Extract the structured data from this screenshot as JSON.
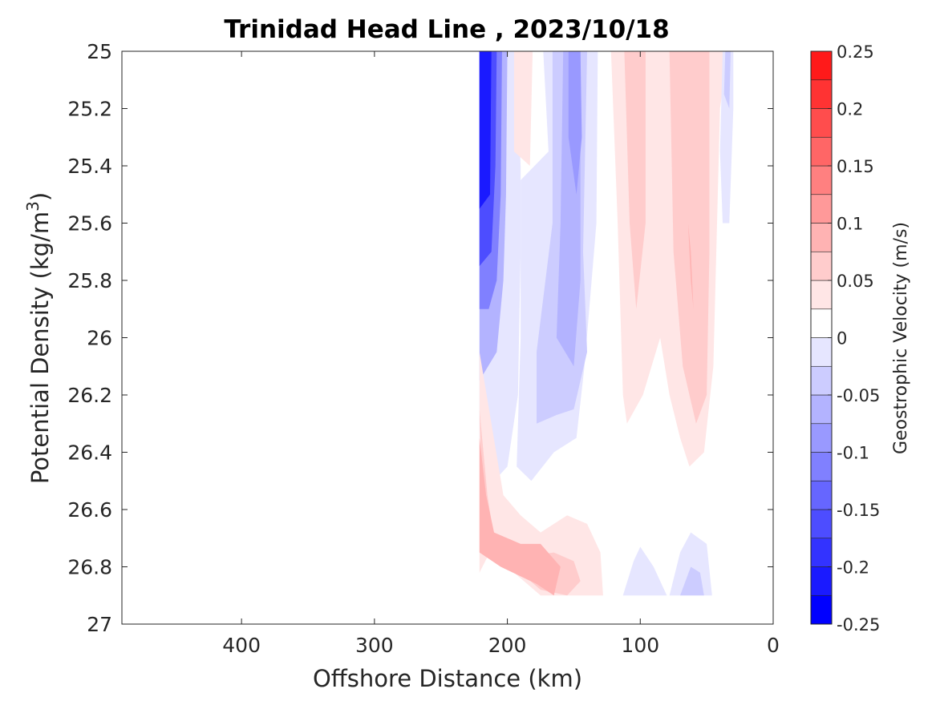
{
  "chart_data": {
    "type": "contour",
    "title": "Trinidad Head Line , 2023/10/18",
    "xlabel": "Offshore Distance (km)",
    "ylabel": "Potential Density (kg/m",
    "ylabel_sup": "3",
    "ylabel_close": ")",
    "xlim": [
      490,
      0
    ],
    "x_reversed": true,
    "ylim": [
      25,
      27
    ],
    "y_reversed": true,
    "xticks": [
      400,
      300,
      200,
      100,
      0
    ],
    "xtick_labels": [
      "400",
      "300",
      "200",
      "100",
      "0"
    ],
    "yticks": [
      25,
      25.2,
      25.4,
      25.6,
      25.8,
      26,
      26.2,
      26.4,
      26.6,
      26.8,
      27
    ],
    "ytick_labels": [
      "25",
      "25.2",
      "25.4",
      "25.6",
      "25.8",
      "26",
      "26.2",
      "26.4",
      "26.6",
      "26.8",
      "27"
    ],
    "grid": false,
    "colorbar": {
      "label": "Geostrophic Velocity (m/s)",
      "limits": [
        -0.25,
        0.25
      ],
      "levels": [
        -0.25,
        -0.225,
        -0.2,
        -0.175,
        -0.15,
        -0.125,
        -0.1,
        -0.075,
        -0.05,
        -0.025,
        0,
        0.025,
        0.05,
        0.075,
        0.1,
        0.125,
        0.15,
        0.175,
        0.2,
        0.225,
        0.25
      ],
      "colors": [
        "#0000ff",
        "#1a1aff",
        "#3333ff",
        "#4d4dff",
        "#6666ff",
        "#8080ff",
        "#9999ff",
        "#b3b3ff",
        "#ccccff",
        "#e6e6ff",
        "#ffffff",
        "#ffe6e6",
        "#ffcccc",
        "#ffb3b3",
        "#ff9999",
        "#ff8080",
        "#ff6666",
        "#ff4d4d",
        "#ff3333",
        "#ff1a1a"
      ],
      "tick_values": [
        0.25,
        0.2,
        0.15,
        0.1,
        0.05,
        0,
        -0.05,
        -0.1,
        -0.15,
        -0.2,
        -0.25
      ],
      "tick_labels": [
        "0.25",
        "0.2",
        "0.15",
        "0.1",
        "0.05",
        "0",
        "-0.05",
        "-0.1",
        "-0.15",
        "-0.2",
        "-0.25"
      ]
    },
    "contour_regions": [
      {
        "name": "coastal-jet-outer",
        "color": "#e6e6ff",
        "points": [
          [
            221,
            25
          ],
          [
            194,
            25
          ],
          [
            190,
            25.4
          ],
          [
            190,
            25.7
          ],
          [
            192,
            26.2
          ],
          [
            200,
            26.45
          ],
          [
            210,
            26.5
          ],
          [
            221,
            26.45
          ]
        ]
      },
      {
        "name": "coastal-jet-mid",
        "color": "#b3b3ff",
        "points": [
          [
            221,
            25
          ],
          [
            200,
            25
          ],
          [
            201,
            25.5
          ],
          [
            203,
            25.8
          ],
          [
            208,
            26.05
          ],
          [
            221,
            26.15
          ]
        ]
      },
      {
        "name": "coastal-jet-core-1",
        "color": "#8080ff",
        "points": [
          [
            221,
            25
          ],
          [
            204,
            25
          ],
          [
            205,
            25.5
          ],
          [
            208,
            25.8
          ],
          [
            214,
            25.9
          ],
          [
            221,
            25.9
          ]
        ]
      },
      {
        "name": "coastal-jet-core-2",
        "color": "#4d4dff",
        "points": [
          [
            221,
            25
          ],
          [
            208,
            25
          ],
          [
            209,
            25.4
          ],
          [
            212,
            25.7
          ],
          [
            221,
            25.75
          ]
        ]
      },
      {
        "name": "coastal-jet-core-3",
        "color": "#1a1aff",
        "points": [
          [
            221,
            25
          ],
          [
            212,
            25
          ],
          [
            213,
            25.5
          ],
          [
            221,
            25.55
          ]
        ]
      },
      {
        "name": "offshore-blue-outer",
        "color": "#e6e6ff",
        "points": [
          [
            173,
            25
          ],
          [
            169,
            25.35
          ],
          [
            190,
            25.45
          ],
          [
            190,
            26.0
          ],
          [
            193,
            26.45
          ],
          [
            182,
            26.5
          ],
          [
            165,
            26.4
          ],
          [
            148,
            26.35
          ],
          [
            142,
            26.1
          ],
          [
            133,
            25.6
          ],
          [
            132,
            25.0
          ]
        ]
      },
      {
        "name": "offshore-blue-mid",
        "color": "#ccccff",
        "points": [
          [
            166,
            25
          ],
          [
            166,
            25.6
          ],
          [
            178,
            26.05
          ],
          [
            178,
            26.3
          ],
          [
            163,
            26.27
          ],
          [
            150,
            26.25
          ],
          [
            140,
            26.05
          ],
          [
            143,
            25.7
          ],
          [
            140,
            25.0
          ]
        ]
      },
      {
        "name": "offshore-blue-inner",
        "color": "#b3b3ff",
        "points": [
          [
            158,
            25
          ],
          [
            160,
            25.6
          ],
          [
            163,
            26.0
          ],
          [
            150,
            26.1
          ],
          [
            145,
            25.8
          ],
          [
            145,
            25.0
          ]
        ]
      },
      {
        "name": "offshore-blue-core",
        "color": "#9999ff",
        "points": [
          [
            154,
            25
          ],
          [
            154,
            25.3
          ],
          [
            148,
            25.5
          ],
          [
            144,
            25.3
          ],
          [
            145,
            25.0
          ]
        ]
      },
      {
        "name": "mid-pink-strip",
        "color": "#ffe6e6",
        "points": [
          [
            195,
            25
          ],
          [
            195,
            25.35
          ],
          [
            183,
            25.4
          ],
          [
            181,
            25.0
          ]
        ]
      },
      {
        "name": "shelf-pink-outer",
        "color": "#ffe6e6",
        "points": [
          [
            122,
            25
          ],
          [
            117,
            25.6
          ],
          [
            113,
            26.2
          ],
          [
            110,
            26.3
          ],
          [
            98,
            26.2
          ],
          [
            85,
            26.0
          ],
          [
            78,
            26.2
          ],
          [
            70,
            26.35
          ],
          [
            63,
            26.45
          ],
          [
            52,
            26.4
          ],
          [
            45,
            26.1
          ],
          [
            40,
            25.2
          ],
          [
            34,
            25.0
          ]
        ]
      },
      {
        "name": "shelf-pink-inner-a",
        "color": "#ffcccc",
        "points": [
          [
            112,
            25
          ],
          [
            108,
            25.6
          ],
          [
            103,
            25.9
          ],
          [
            96,
            25.6
          ],
          [
            96,
            25.0
          ]
        ]
      },
      {
        "name": "shelf-pink-inner-b",
        "color": "#ffcccc",
        "points": [
          [
            78,
            25
          ],
          [
            75,
            25.7
          ],
          [
            68,
            26.1
          ],
          [
            58,
            26.3
          ],
          [
            50,
            26.2
          ],
          [
            48,
            25.7
          ],
          [
            48,
            25.0
          ]
        ]
      },
      {
        "name": "shelf-pink-core",
        "color": "#ffb3b3",
        "points": [
          [
            64,
            25.6
          ],
          [
            62,
            25.8
          ],
          [
            60,
            25.9
          ],
          [
            62,
            25.7
          ]
        ]
      },
      {
        "name": "nearshore-blue-strip",
        "color": "#e6e6ff",
        "points": [
          [
            38,
            25
          ],
          [
            40,
            25.35
          ],
          [
            38,
            25.6
          ],
          [
            33,
            25.6
          ],
          [
            30,
            25.2
          ],
          [
            30,
            25.0
          ]
        ]
      },
      {
        "name": "nearshore-blue-top",
        "color": "#ccccff",
        "points": [
          [
            36,
            25
          ],
          [
            37,
            25.15
          ],
          [
            33,
            25.2
          ],
          [
            32,
            25.0
          ]
        ]
      },
      {
        "name": "deep-pink-outer",
        "color": "#ffe6e6",
        "points": [
          [
            221,
            26.05
          ],
          [
            212,
            26.3
          ],
          [
            203,
            26.55
          ],
          [
            190,
            26.62
          ],
          [
            175,
            26.68
          ],
          [
            155,
            26.62
          ],
          [
            140,
            26.65
          ],
          [
            130,
            26.75
          ],
          [
            128,
            26.9
          ],
          [
            175,
            26.9
          ],
          [
            195,
            26.82
          ],
          [
            210,
            26.72
          ],
          [
            221,
            26.82
          ]
        ]
      },
      {
        "name": "deep-pink-inner",
        "color": "#ffcccc",
        "points": [
          [
            221,
            26.25
          ],
          [
            215,
            26.55
          ],
          [
            210,
            26.7
          ],
          [
            195,
            26.77
          ],
          [
            165,
            26.75
          ],
          [
            150,
            26.78
          ],
          [
            145,
            26.85
          ],
          [
            155,
            26.9
          ],
          [
            175,
            26.88
          ],
          [
            195,
            26.8
          ],
          [
            218,
            26.7
          ]
        ]
      },
      {
        "name": "deep-pink-core",
        "color": "#ffb3b3",
        "points": [
          [
            221,
            26.35
          ],
          [
            216,
            26.55
          ],
          [
            210,
            26.68
          ],
          [
            190,
            26.72
          ],
          [
            175,
            26.72
          ],
          [
            160,
            26.8
          ],
          [
            165,
            26.9
          ],
          [
            178,
            26.86
          ],
          [
            205,
            26.8
          ],
          [
            221,
            26.75
          ]
        ]
      },
      {
        "name": "deep-blue-outer-a",
        "color": "#e6e6ff",
        "points": [
          [
            113,
            26.9
          ],
          [
            105,
            26.78
          ],
          [
            100,
            26.73
          ],
          [
            90,
            26.8
          ],
          [
            80,
            26.9
          ]
        ]
      },
      {
        "name": "deep-blue-outer-b",
        "color": "#e6e6ff",
        "points": [
          [
            78,
            26.9
          ],
          [
            70,
            26.75
          ],
          [
            62,
            26.68
          ],
          [
            50,
            26.72
          ],
          [
            46,
            26.9
          ]
        ]
      },
      {
        "name": "deep-blue-inner-b",
        "color": "#ccccff",
        "points": [
          [
            70,
            26.9
          ],
          [
            62,
            26.8
          ],
          [
            55,
            26.82
          ],
          [
            52,
            26.9
          ]
        ]
      }
    ]
  }
}
